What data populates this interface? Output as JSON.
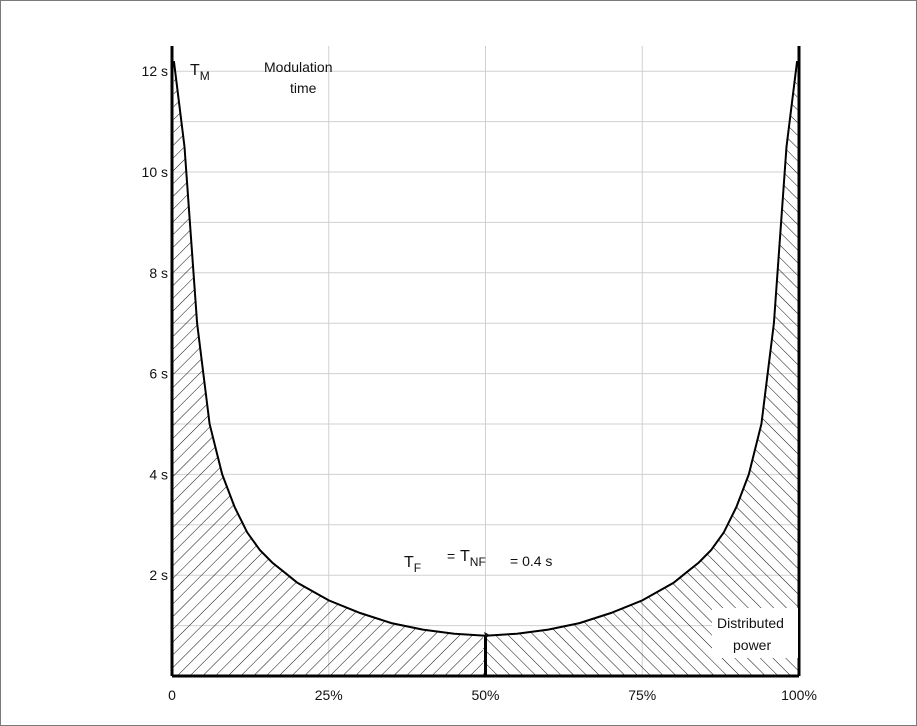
{
  "chart_data": {
    "type": "area",
    "x_ticks": [
      "0",
      "25%",
      "50%",
      "75%",
      "100%"
    ],
    "y_ticks": [
      "2 s",
      "4 s",
      "6 s",
      "8 s",
      "10 s",
      "12 s"
    ],
    "xlim": [
      0,
      100
    ],
    "ylim": [
      0,
      12
    ],
    "grid": true,
    "x": [
      0.3,
      2,
      4,
      6,
      8,
      10,
      12,
      14,
      16,
      18,
      20,
      25,
      30,
      35,
      40,
      45,
      50,
      55,
      60,
      65,
      70,
      75,
      80,
      82,
      84,
      86,
      88,
      90,
      92,
      94,
      96,
      98,
      99.7
    ],
    "y": [
      12.2,
      10.5,
      7.0,
      5.0,
      4.0,
      3.35,
      2.85,
      2.5,
      2.25,
      2.05,
      1.85,
      1.5,
      1.25,
      1.05,
      0.92,
      0.84,
      0.8,
      0.84,
      0.92,
      1.05,
      1.25,
      1.5,
      1.85,
      2.05,
      2.25,
      2.5,
      2.85,
      3.35,
      4.0,
      5.0,
      7.0,
      10.5,
      12.2
    ],
    "labels": {
      "y_symbol": "T",
      "y_symbol_sub": "M",
      "y_desc_line1": "Modulation",
      "y_desc_line2": "time",
      "eq_tf": "T",
      "eq_tf_sub": "F",
      "eq_eq1": "=",
      "eq_tnf": "T",
      "eq_tnf_sub": "NF",
      "eq_value": "= 0.4 s",
      "x_desc_line1": "Distributed",
      "x_desc_line2": "power"
    },
    "colors": {
      "curve": "#000000",
      "hatch": "#111111",
      "grid": "#d0d0d0",
      "axis": "#000000"
    }
  }
}
